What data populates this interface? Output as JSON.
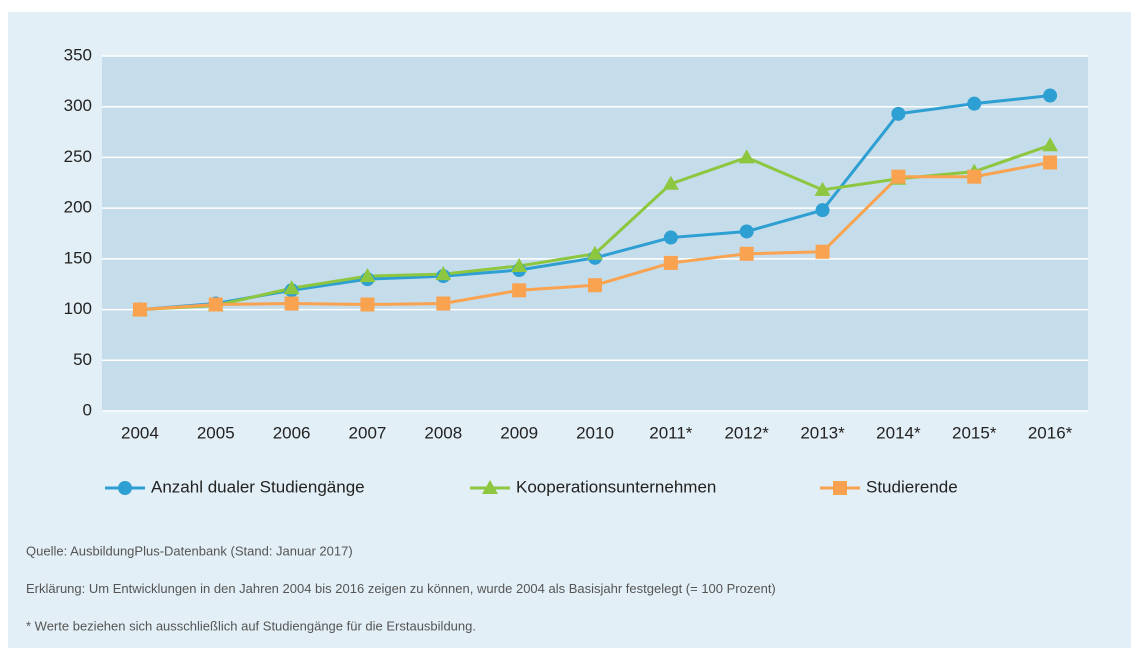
{
  "chart_data": {
    "type": "line",
    "categories": [
      "2004",
      "2005",
      "2006",
      "2007",
      "2008",
      "2009",
      "2010",
      "2011*",
      "2012*",
      "2013*",
      "2014*",
      "2015*",
      "2016*"
    ],
    "series": [
      {
        "name": "Anzahl dualer Studiengänge",
        "color": "#2e9fd2",
        "marker": "circle",
        "values": [
          100,
          106,
          119,
          130,
          133,
          139,
          151,
          171,
          177,
          198,
          293,
          303,
          311
        ]
      },
      {
        "name": "Kooperationsunternehmen",
        "color": "#8dc63f",
        "marker": "triangle",
        "values": [
          100,
          104,
          121,
          133,
          135,
          143,
          155,
          224,
          250,
          218,
          229,
          236,
          262
        ]
      },
      {
        "name": "Studierende",
        "color": "#f9a350",
        "marker": "square",
        "values": [
          100,
          105,
          106,
          105,
          106,
          119,
          124,
          146,
          155,
          157,
          231,
          231,
          245
        ]
      }
    ],
    "ylim": [
      0,
      350
    ],
    "yticks": [
      0,
      50,
      100,
      150,
      200,
      250,
      300,
      350
    ],
    "grid": true,
    "legend": "bottom",
    "notes": [
      "Quelle: AusbildungPlus-Datenbank (Stand: Januar 2017)",
      "Erklärung: Um Entwicklungen in den Jahren 2004 bis 2016 zeigen zu können, wurde 2004 als Basisjahr festgelegt (= 100 Prozent)",
      "* Werte beziehen sich ausschließlich auf Studiengänge für die Erstausbildung."
    ]
  }
}
